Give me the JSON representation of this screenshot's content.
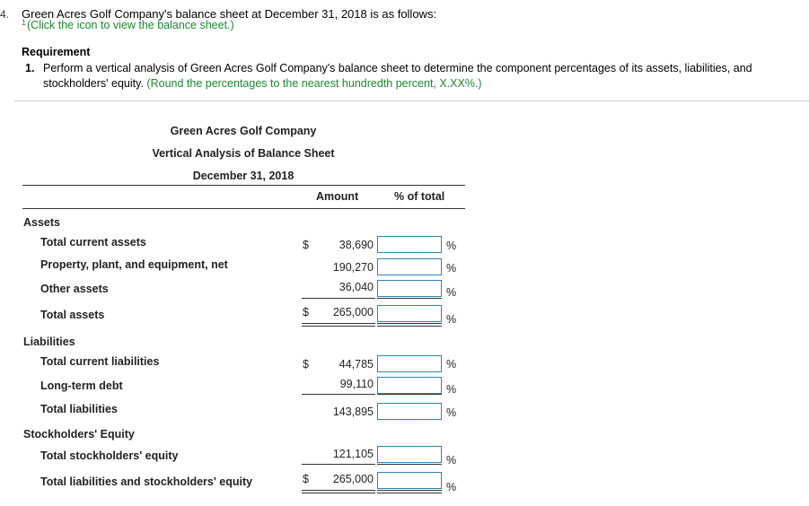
{
  "question": {
    "number": "4.",
    "text": "Green Acres Golf Company's balance sheet at December 31, 2018 is as follows:",
    "link_marker": "1",
    "link_text": "(Click the icon to view the balance sheet.)"
  },
  "requirement": {
    "heading": "Requirement",
    "item_number": "1.",
    "line1": "Perform a vertical analysis of Green Acres Golf Company's balance sheet to determine the component percentages of its assets, liabilities, and",
    "line2_text": "stockholders' equity.",
    "line2_instruction": "(Round the percentages to the nearest hundredth percent, X.XX%.)"
  },
  "table": {
    "company": "Green Acres Golf Company",
    "title": "Vertical Analysis of Balance Sheet",
    "date": "December 31, 2018",
    "col_amount": "Amount",
    "col_pct": "% of total",
    "sections": {
      "assets": "Assets",
      "liabilities": "Liabilities",
      "equity": "Stockholders' Equity"
    },
    "rows": [
      {
        "label": "Total current assets",
        "dollar": "$",
        "amount": "38,690",
        "pct": "",
        "pct_sign": "%"
      },
      {
        "label": "Property, plant, and equipment, net",
        "dollar": "",
        "amount": "190,270",
        "pct": "",
        "pct_sign": "%"
      },
      {
        "label": "Other assets",
        "dollar": "",
        "amount": "36,040",
        "pct": "",
        "pct_sign": "%"
      },
      {
        "label": "Total assets",
        "dollar": "$",
        "amount": "265,000",
        "pct": "",
        "pct_sign": "%"
      },
      {
        "label": "Total current liabilities",
        "dollar": "$",
        "amount": "44,785",
        "pct": "",
        "pct_sign": "%"
      },
      {
        "label": "Long-term debt",
        "dollar": "",
        "amount": "99,110",
        "pct": "",
        "pct_sign": "%"
      },
      {
        "label": "Total liabilities",
        "dollar": "",
        "amount": "143,895",
        "pct": "",
        "pct_sign": "%"
      },
      {
        "label": "Total stockholders' equity",
        "dollar": "",
        "amount": "121,105",
        "pct": "",
        "pct_sign": "%"
      },
      {
        "label": "Total liabilities and stockholders' equity",
        "dollar": "$",
        "amount": "265,000",
        "pct": "",
        "pct_sign": "%"
      }
    ]
  }
}
